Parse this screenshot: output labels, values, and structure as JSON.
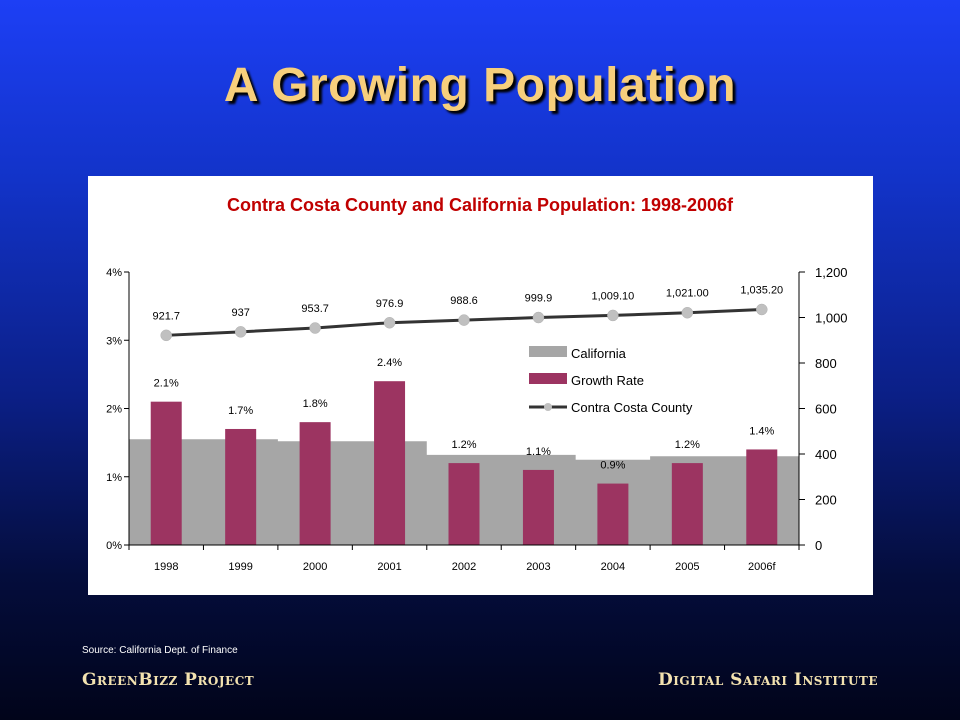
{
  "slide": {
    "title": "A Growing Population",
    "source": "Source: California Dept. of Finance",
    "footer_left": "GreenBizz Project",
    "footer_right": "Digital Safari Institute"
  },
  "colors": {
    "california": "#a6a6a6",
    "growth_rate": "#9c3461",
    "contra_costa_line": "#333333",
    "contra_costa_marker": "#c0c0c0",
    "chart_title": "#c00000"
  },
  "chart_data": {
    "type": "bar",
    "title": "Contra Costa County and California Population: 1998-2006f",
    "categories": [
      "1998",
      "1999",
      "2000",
      "2001",
      "2002",
      "2003",
      "2004",
      "2005",
      "2006f"
    ],
    "left_axis": {
      "ylim": [
        0,
        4
      ],
      "ticks": [
        0,
        1,
        2,
        3,
        4
      ],
      "tick_labels": [
        "0%",
        "1%",
        "2%",
        "3%",
        "4%"
      ]
    },
    "right_axis": {
      "ylim": [
        0,
        1200
      ],
      "ticks": [
        0,
        200,
        400,
        600,
        800,
        1000,
        1200
      ],
      "tick_labels": [
        "0",
        "200",
        "400",
        "600",
        "800",
        "1,000",
        "1,200"
      ]
    },
    "series": [
      {
        "name": "California",
        "type": "area",
        "axis": "left",
        "values": [
          1.55,
          1.55,
          1.52,
          1.52,
          1.32,
          1.32,
          1.25,
          1.3,
          1.3
        ]
      },
      {
        "name": "Growth Rate",
        "type": "bar",
        "axis": "left",
        "values": [
          2.1,
          1.7,
          1.8,
          2.4,
          1.2,
          1.1,
          0.9,
          1.2,
          1.4
        ],
        "labels": [
          "2.1%",
          "1.7%",
          "1.8%",
          "2.4%",
          "1.2%",
          "1.1%",
          "0.9%",
          "1.2%",
          "1.4%"
        ]
      },
      {
        "name": "Contra Costa County",
        "type": "line",
        "axis": "right",
        "values": [
          921.7,
          937,
          953.7,
          976.9,
          988.6,
          999.9,
          1009.1,
          1021.0,
          1035.2
        ],
        "labels": [
          "921.7",
          "937",
          "953.7",
          "976.9",
          "988.6",
          "999.9",
          "1,009.10",
          "1,021.00",
          "1,035.20"
        ]
      }
    ],
    "legend_position": "center-right"
  }
}
